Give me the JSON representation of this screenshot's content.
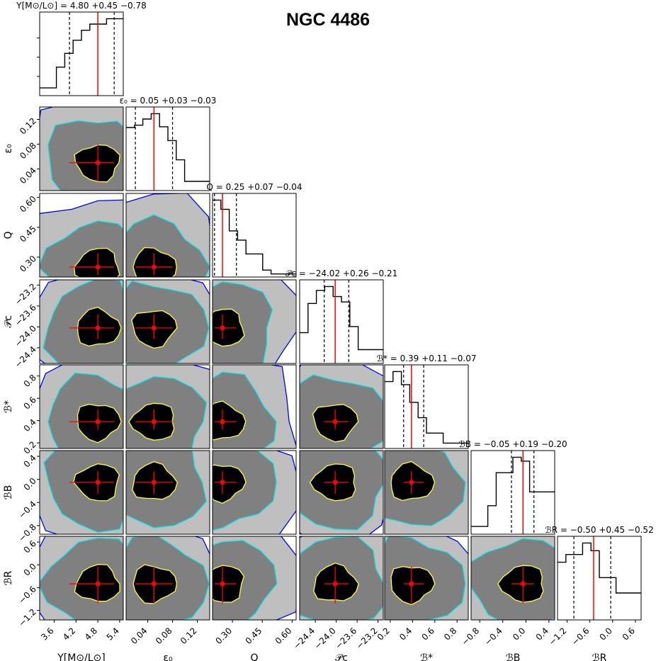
{
  "title": "NGC 4486",
  "colors": {
    "sigma3": "#bfbfbf",
    "sigma2": "#808080",
    "sigma1": "#000000",
    "contour3": "#0000ff",
    "contour2": "#00e5e5",
    "contour1": "#ffff33",
    "truth": "#ff0000",
    "hist": "#000000"
  },
  "chart_data": {
    "type": "corner",
    "parameters": [
      {
        "key": "ups",
        "label": "Υ[M⊙/L⊙]",
        "range": [
          3.2,
          5.5
        ],
        "ticks": [
          "3.6",
          "4.2",
          "4.8",
          "5.4"
        ],
        "median": 4.8,
        "plus": 0.45,
        "minus": 0.78,
        "title": "Υ[M⊙/L⊙] = 4.80 +0.45 −0.78",
        "hist": [
          0.1,
          0.1,
          0.37,
          0.55,
          0.72,
          0.85,
          0.93,
          0.93,
          1.0,
          1.0
        ]
      },
      {
        "key": "eps",
        "label": "ε₀",
        "range": [
          0.005,
          0.14
        ],
        "ticks": [
          "0.04",
          "0.08",
          "0.12"
        ],
        "median": 0.05,
        "plus": 0.03,
        "minus": 0.03,
        "title": "ε₀ = 0.05 +0.03 −0.03",
        "hist": [
          0.82,
          0.85,
          0.93,
          1.0,
          0.83,
          0.65,
          0.4,
          0.12,
          0.12,
          0.12
        ]
      },
      {
        "key": "Q",
        "label": "Q",
        "range": [
          0.2,
          0.62
        ],
        "ticks": [
          "0.30",
          "0.45",
          "0.60"
        ],
        "median": 0.25,
        "plus": 0.07,
        "minus": 0.04,
        "title": "Q = 0.25 +0.07 −0.04",
        "hist": [
          1.0,
          0.88,
          0.6,
          0.48,
          0.3,
          0.3,
          0.09,
          0.04,
          0.04,
          0.04
        ]
      },
      {
        "key": "Pc",
        "label": "𝒫c",
        "range": [
          -24.7,
          -23.1
        ],
        "ticks": [
          "-24.4",
          "-24.0",
          "-23.6",
          "-23.2"
        ],
        "median": -24.02,
        "plus": 0.26,
        "minus": 0.21,
        "title": "𝒫c = −24.02 +0.26 −0.21",
        "hist": [
          0.4,
          0.78,
          0.95,
          1.0,
          0.87,
          0.8,
          0.48,
          0.18,
          0.18,
          0.18
        ]
      },
      {
        "key": "Bs",
        "label": "ℬ*",
        "range": [
          0.15,
          0.9
        ],
        "ticks": [
          "0.2",
          "0.4",
          "0.6",
          "0.8"
        ],
        "median": 0.39,
        "plus": 0.11,
        "minus": 0.07,
        "title": "ℬ* = 0.39 +0.11 −0.07",
        "hist": [
          0.87,
          1.0,
          0.83,
          0.6,
          0.4,
          0.2,
          0.2,
          0.07,
          0.07,
          0.07
        ]
      },
      {
        "key": "BB",
        "label": "ℬB",
        "range": [
          -0.95,
          0.5
        ],
        "ticks": [
          "-0.8",
          "-0.4",
          "0.0",
          "0.4"
        ],
        "median": -0.05,
        "plus": 0.19,
        "minus": 0.2,
        "title": "ℬB = −0.05 +0.19 −0.20",
        "hist": [
          0.1,
          0.1,
          0.37,
          0.8,
          0.8,
          1.0,
          0.95,
          0.55,
          0.55,
          0.55
        ]
      },
      {
        "key": "BR",
        "label": "ℬR",
        "range": [
          -1.45,
          0.75
        ],
        "ticks": [
          "-1.2",
          "-0.6",
          "0.0",
          "0.6"
        ],
        "median": -0.5,
        "plus": 0.45,
        "minus": 0.52,
        "title": "ℬR = −0.50 +0.45 −0.52",
        "hist": [
          0.75,
          0.85,
          0.85,
          1.0,
          0.9,
          0.55,
          0.55,
          0.35,
          0.35,
          0.35
        ]
      }
    ],
    "axis_labels": {
      "x": [
        "Υ[M⊙/L⊙]",
        "ε₀",
        "Q",
        "𝒫c",
        "ℬ*",
        "ℬB",
        "ℬR"
      ],
      "y": [
        "ε₀",
        "Q",
        "𝒫c",
        "ℬ*",
        "ℬB",
        "ℬR"
      ]
    },
    "contour_levels": [
      "1σ",
      "2σ",
      "3σ"
    ]
  }
}
